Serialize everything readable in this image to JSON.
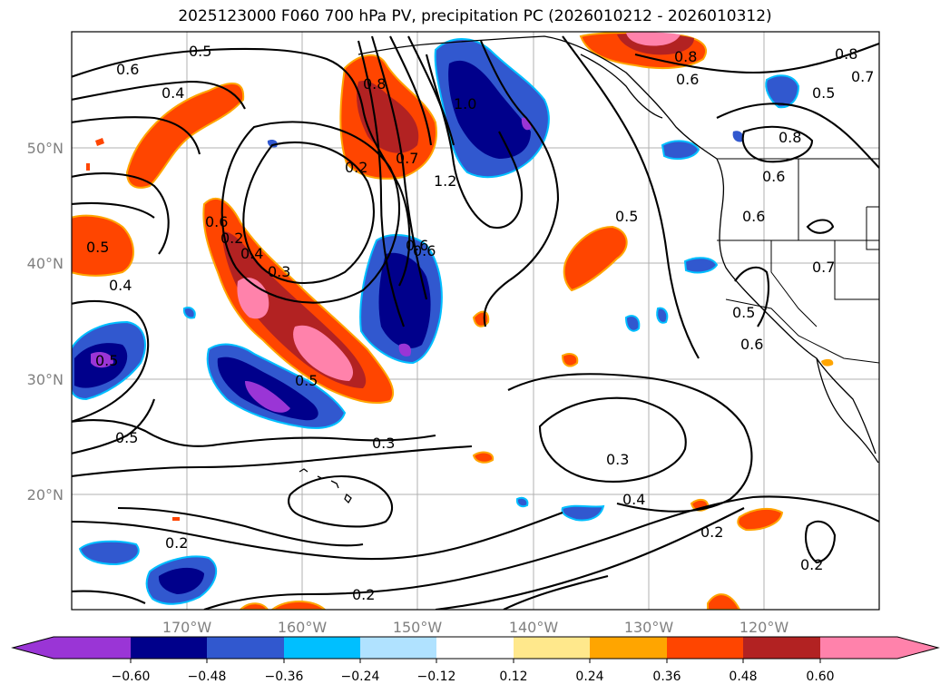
{
  "title": "2025123000 F060 700 hPa PV, precipitation PC (2026010212 - 2026010312)",
  "map": {
    "lat_ticks": [
      "50°N",
      "40°N",
      "30°N",
      "20°N"
    ],
    "lon_ticks": [
      "170°W",
      "160°W",
      "150°W",
      "140°W",
      "130°W",
      "120°W"
    ],
    "contour_labels": [
      "0.6",
      "0.5",
      "0.4",
      "0.2",
      "0.8",
      "1.0",
      "1.2",
      "0.7",
      "0.6",
      "0.4",
      "0.3",
      "0.5",
      "0.6",
      "0.5",
      "0.4",
      "0.5",
      "0.3",
      "0.2",
      "0.5",
      "0.3",
      "0.4",
      "0.2",
      "0.2",
      "0.2",
      "0.8",
      "0.6",
      "0.5",
      "0.7",
      "0.8",
      "0.8",
      "0.6",
      "0.7",
      "0.5",
      "0.6",
      "0.5",
      "0.2",
      "0.6",
      "0.6"
    ]
  },
  "colorbar": {
    "ticks": [
      "−0.60",
      "−0.48",
      "−0.36",
      "−0.24",
      "−0.12",
      "0.12",
      "0.24",
      "0.36",
      "0.48",
      "0.60"
    ],
    "colors": [
      "#9a35d6",
      "#00008b",
      "#3158cf",
      "#00bfff",
      "#b0e2ff",
      "#ffffff",
      "#ffe88c",
      "#ffa500",
      "#ff4500",
      "#b22222",
      "#ff82ab",
      "#ff82ab"
    ]
  }
}
